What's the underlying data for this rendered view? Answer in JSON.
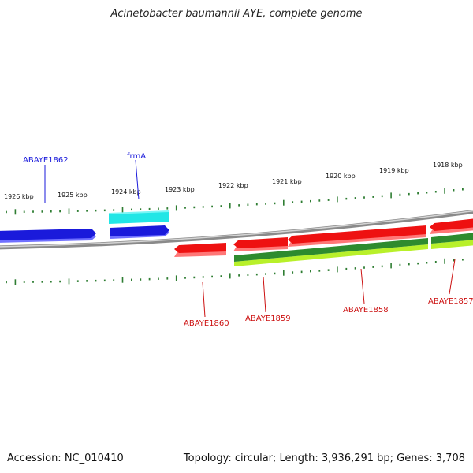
{
  "title": "Acinetobacter baumannii AYE, complete genome",
  "footer": {
    "accession": "Accession: NC_010410",
    "summary": "Topology: circular; Length: 3,936,291 bp; Genes: 3,708"
  },
  "colors": {
    "backbone": "#8a8a8a",
    "tick": "#2e7d32",
    "gene_forward": "#1a1adb",
    "gene_forward_shadow": "#6f6fff",
    "gene_highlight": "#22e6e6",
    "gene_reverse": "#ee1111",
    "gene_reverse_shadow": "#ff7777",
    "gene_other": "#2e8b2e",
    "gene_other_light": "#b8f02a",
    "label_forward": "#1a1adb",
    "label_reverse": "#cc1111"
  },
  "scale": {
    "kbp_labels": [
      "1926 kbp",
      "1925 kbp",
      "1924 kbp",
      "1923 kbp",
      "1922 kbp",
      "1921 kbp",
      "1920 kbp",
      "1919 kbp",
      "1918 kbp"
    ]
  },
  "genes": [
    {
      "name": "ABAYE1862",
      "strand": "forward"
    },
    {
      "name": "frmA",
      "strand": "forward"
    },
    {
      "name": "ABAYE1860",
      "strand": "reverse"
    },
    {
      "name": "ABAYE1859",
      "strand": "reverse"
    },
    {
      "name": "ABAYE1858",
      "strand": "reverse"
    },
    {
      "name": "ABAYE1857",
      "strand": "reverse"
    }
  ]
}
